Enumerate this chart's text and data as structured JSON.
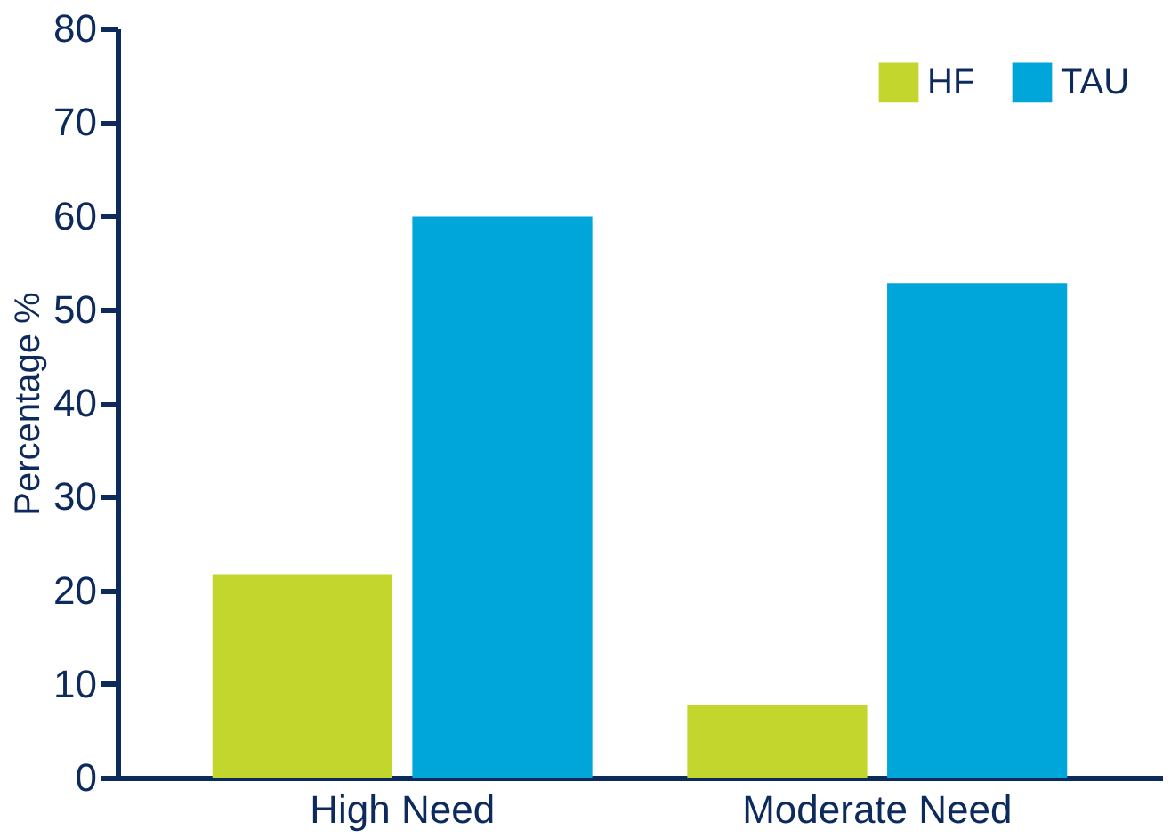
{
  "chart_data": {
    "type": "bar",
    "categories": [
      "High Need",
      "Moderate Need"
    ],
    "ylabel": "Percentage %",
    "ylim": [
      0,
      80
    ],
    "yticks": [
      0,
      10,
      20,
      30,
      40,
      50,
      60,
      70,
      80
    ],
    "grid": false,
    "legend": "top right",
    "series": [
      {
        "name": "HF",
        "color": "#c2d62e",
        "values": [
          21.7,
          7.8
        ]
      },
      {
        "name": "TAU",
        "color": "#00a6da",
        "values": [
          59.9,
          52.8
        ]
      }
    ]
  }
}
